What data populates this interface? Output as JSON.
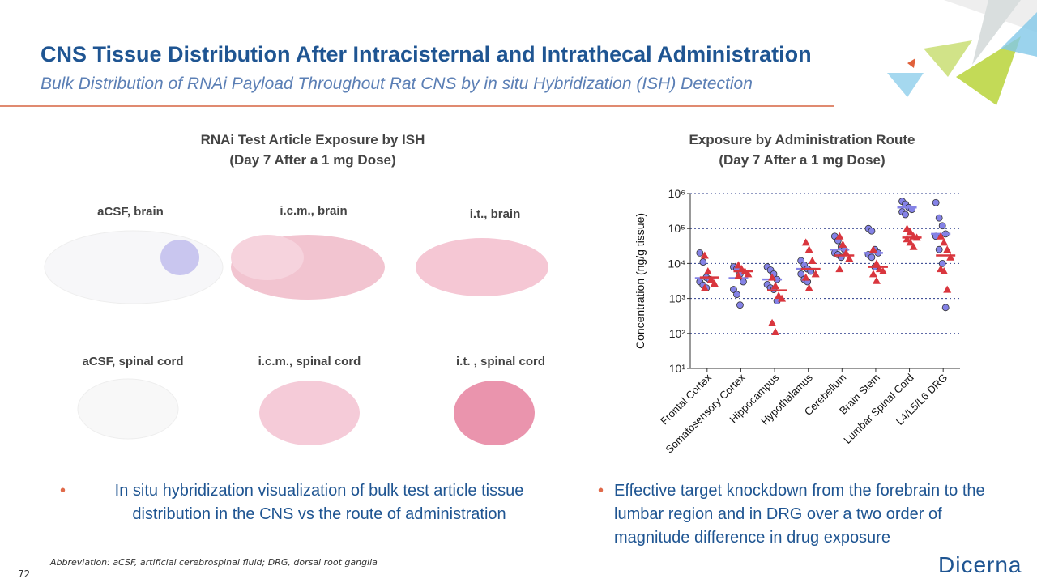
{
  "header": {
    "title": "CNS Tissue Distribution After Intracisternal and Intrathecal Administration",
    "subtitle": "Bulk Distribution of RNAi Payload Throughout Rat CNS by in situ Hybridization (ISH) Detection"
  },
  "ish_panel": {
    "title": "RNAi Test Article Exposure by ISH",
    "subtitle": "(Day 7 After a 1 mg Dose)",
    "images": [
      "aCSF, brain",
      "i.c.m., brain",
      "i.t., brain",
      "aCSF, spinal cord",
      "i.c.m., spinal cord",
      "i.t. , spinal cord"
    ]
  },
  "chart_data": {
    "type": "scatter",
    "title": "Exposure by Administration Route",
    "subtitle": "(Day 7 After a 1 mg Dose)",
    "y_label": "Concentration (ng/g tissue)",
    "log_scale": true,
    "grid": true,
    "categories": [
      "Frontal Cortex",
      "Somatosensory Cortex",
      "Hippocampus",
      "Hypothalamus",
      "Cerebellum",
      "Brain Stem",
      "Lumbar Spinal Cord",
      "L4/L5/L6 DRG"
    ],
    "ylim": [
      10,
      1000000
    ],
    "yticks": [
      {
        "value": 10,
        "label": "10¹"
      },
      {
        "value": 100,
        "label": "10²"
      },
      {
        "value": 1000,
        "label": "10³"
      },
      {
        "value": 10000,
        "label": "10⁴"
      },
      {
        "value": 100000,
        "label": "10⁵"
      },
      {
        "value": 1000000,
        "label": "10⁶"
      }
    ],
    "series": [
      {
        "color": "#8482e6",
        "marker": "circle",
        "values": [
          [
            20000,
            11000,
            4000,
            3500,
            3000,
            2400,
            2000
          ],
          [
            8000,
            7000,
            5000,
            3000,
            1800,
            1300,
            650
          ],
          [
            8000,
            6500,
            5000,
            3500,
            2500,
            2000,
            1800,
            850
          ],
          [
            12000,
            9000,
            7000,
            6000,
            5000,
            3500,
            3000
          ],
          [
            60000,
            45000,
            30000,
            25000,
            20000,
            18000,
            15000
          ],
          [
            100000,
            85000,
            25000,
            20000,
            18000,
            15000,
            8000
          ],
          [
            600000,
            500000,
            400000,
            350000,
            300000,
            250000
          ],
          [
            550000,
            200000,
            120000,
            70000,
            60000,
            25000,
            10000,
            550
          ]
        ],
        "means": [
          3800,
          3800,
          3500,
          7000,
          25000,
          20000,
          400000,
          70000
        ]
      },
      {
        "color": "#d9363e",
        "marker": "triangle",
        "values": [
          [
            17000,
            6000,
            3500,
            2700,
            2000
          ],
          [
            9000,
            7000,
            6000,
            5000,
            4500
          ],
          [
            4000,
            2300,
            1200,
            1000,
            200,
            110
          ],
          [
            40000,
            25000,
            12000,
            5000,
            4000,
            2000
          ],
          [
            60000,
            35000,
            20000,
            14000,
            7000
          ],
          [
            25000,
            10000,
            7000,
            6000,
            5000,
            3200
          ],
          [
            100000,
            80000,
            60000,
            55000,
            50000,
            40000,
            30000
          ],
          [
            60000,
            40000,
            25000,
            15000,
            7000,
            6000,
            1800
          ]
        ],
        "means": [
          4000,
          6000,
          1700,
          7000,
          17000,
          8000,
          55000,
          17000
        ]
      }
    ]
  },
  "bullets": [
    "In situ hybridization visualization of bulk test article tissue distribution in the CNS vs the route of administration",
    "Effective target knockdown from the forebrain to the lumbar region and in DRG over a two order of magnitude difference in drug exposure"
  ],
  "footer": {
    "abbreviation": "Abbreviation: aCSF, artificial cerebrospinal fluid; DRG, dorsal root ganglia",
    "page": "72",
    "logo": "Dicerna"
  }
}
